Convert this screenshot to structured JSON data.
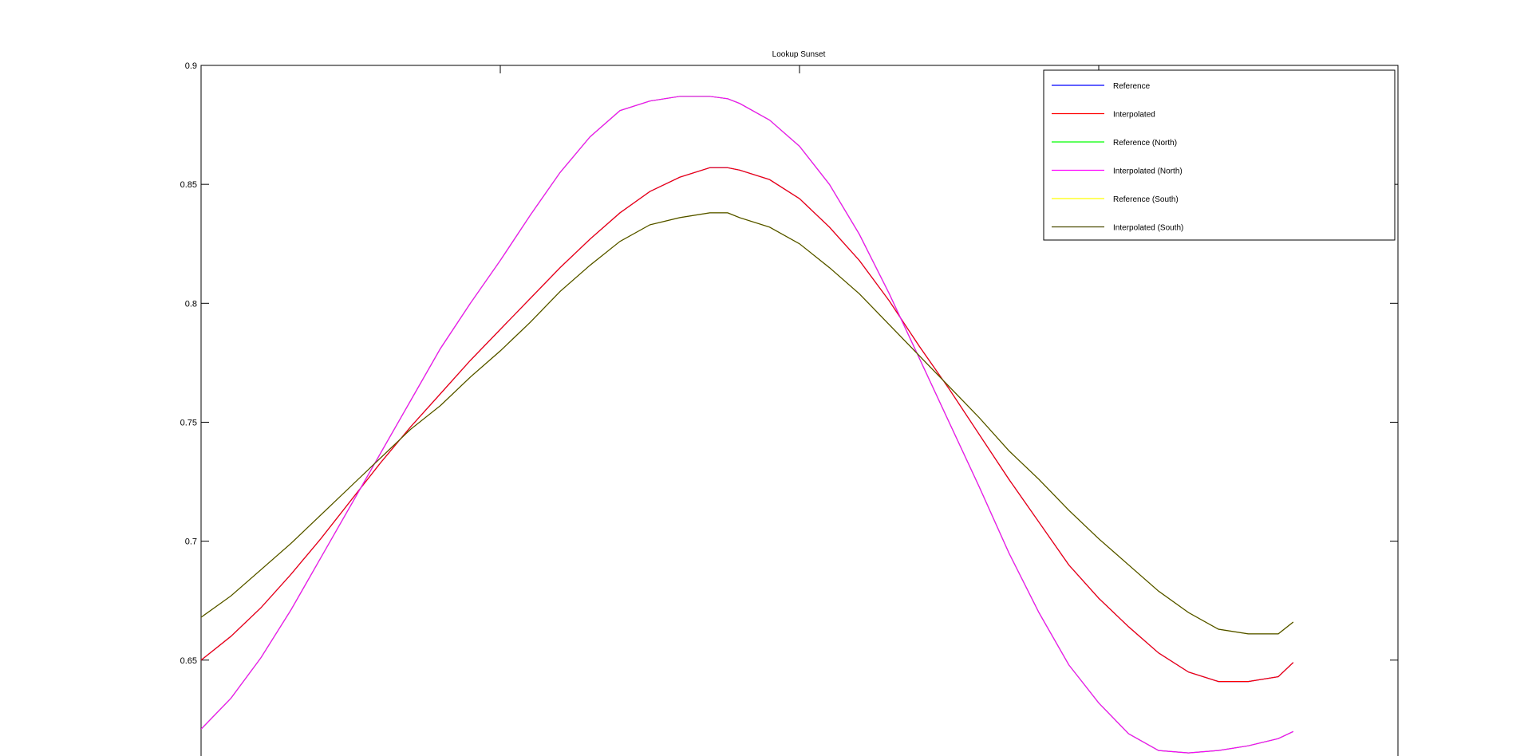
{
  "chart_data": {
    "type": "line",
    "title": "Lookup Sunset",
    "xlabel": "",
    "ylabel": "",
    "xlim": [
      0,
      400
    ],
    "ylim": [
      0.605,
      0.9
    ],
    "yticks": [
      0.65,
      0.7,
      0.75,
      0.8,
      0.85,
      0.9
    ],
    "ytick_labels": [
      "0.65",
      "0.7",
      "0.75",
      "0.8",
      "0.85",
      "0.9"
    ],
    "xticks": [
      0,
      100,
      200,
      300,
      400
    ],
    "grid": false,
    "legend_position": "top-right",
    "x": [
      0,
      10,
      20,
      30,
      40,
      50,
      60,
      70,
      80,
      90,
      100,
      110,
      120,
      130,
      140,
      150,
      160,
      170,
      176,
      180,
      190,
      200,
      210,
      220,
      230,
      240,
      250,
      260,
      270,
      280,
      290,
      300,
      310,
      320,
      330,
      340,
      350,
      360,
      365
    ],
    "series": [
      {
        "name": "Reference",
        "color": "#0000ff",
        "values": [
          0.65,
          0.66,
          0.672,
          0.686,
          0.701,
          0.717,
          0.733,
          0.748,
          0.762,
          0.776,
          0.789,
          0.802,
          0.815,
          0.827,
          0.838,
          0.847,
          0.853,
          0.857,
          0.857,
          0.856,
          0.852,
          0.844,
          0.832,
          0.818,
          0.801,
          0.782,
          0.764,
          0.745,
          0.726,
          0.708,
          0.69,
          0.676,
          0.664,
          0.653,
          0.645,
          0.641,
          0.641,
          0.643,
          0.649
        ]
      },
      {
        "name": "Interpolated",
        "color": "#ff0000",
        "values": [
          0.65,
          0.66,
          0.672,
          0.686,
          0.701,
          0.717,
          0.733,
          0.748,
          0.762,
          0.776,
          0.789,
          0.802,
          0.815,
          0.827,
          0.838,
          0.847,
          0.853,
          0.857,
          0.857,
          0.856,
          0.852,
          0.844,
          0.832,
          0.818,
          0.801,
          0.782,
          0.764,
          0.745,
          0.726,
          0.708,
          0.69,
          0.676,
          0.664,
          0.653,
          0.645,
          0.641,
          0.641,
          0.643,
          0.649
        ]
      },
      {
        "name": "Reference (North)",
        "color": "#00ff00",
        "values": [
          0.621,
          0.634,
          0.651,
          0.671,
          0.693,
          0.715,
          0.737,
          0.759,
          0.781,
          0.8,
          0.818,
          0.837,
          0.855,
          0.87,
          0.881,
          0.885,
          0.887,
          0.887,
          0.886,
          0.884,
          0.877,
          0.866,
          0.85,
          0.829,
          0.804,
          0.777,
          0.75,
          0.723,
          0.695,
          0.67,
          0.648,
          0.632,
          0.619,
          0.612,
          0.611,
          0.612,
          0.614,
          0.617,
          0.62
        ]
      },
      {
        "name": "Interpolated (North)",
        "color": "#ff00ff",
        "values": [
          0.621,
          0.634,
          0.651,
          0.671,
          0.693,
          0.715,
          0.737,
          0.759,
          0.781,
          0.8,
          0.818,
          0.837,
          0.855,
          0.87,
          0.881,
          0.885,
          0.887,
          0.887,
          0.886,
          0.884,
          0.877,
          0.866,
          0.85,
          0.829,
          0.804,
          0.777,
          0.75,
          0.723,
          0.695,
          0.67,
          0.648,
          0.632,
          0.619,
          0.612,
          0.611,
          0.612,
          0.614,
          0.617,
          0.62
        ]
      },
      {
        "name": "Reference (South)",
        "color": "#ffff00",
        "values": [
          0.668,
          0.677,
          0.688,
          0.699,
          0.711,
          0.723,
          0.735,
          0.747,
          0.757,
          0.769,
          0.78,
          0.792,
          0.805,
          0.816,
          0.826,
          0.833,
          0.836,
          0.838,
          0.838,
          0.836,
          0.832,
          0.825,
          0.815,
          0.804,
          0.791,
          0.778,
          0.765,
          0.752,
          0.738,
          0.726,
          0.713,
          0.701,
          0.69,
          0.679,
          0.67,
          0.663,
          0.661,
          0.661,
          0.666
        ]
      },
      {
        "name": "Interpolated (South)",
        "color": "#4a4a00",
        "values": [
          0.668,
          0.677,
          0.688,
          0.699,
          0.711,
          0.723,
          0.735,
          0.747,
          0.757,
          0.769,
          0.78,
          0.792,
          0.805,
          0.816,
          0.826,
          0.833,
          0.836,
          0.838,
          0.838,
          0.836,
          0.832,
          0.825,
          0.815,
          0.804,
          0.791,
          0.778,
          0.765,
          0.752,
          0.738,
          0.726,
          0.713,
          0.701,
          0.69,
          0.679,
          0.67,
          0.663,
          0.661,
          0.661,
          0.666
        ]
      }
    ]
  }
}
